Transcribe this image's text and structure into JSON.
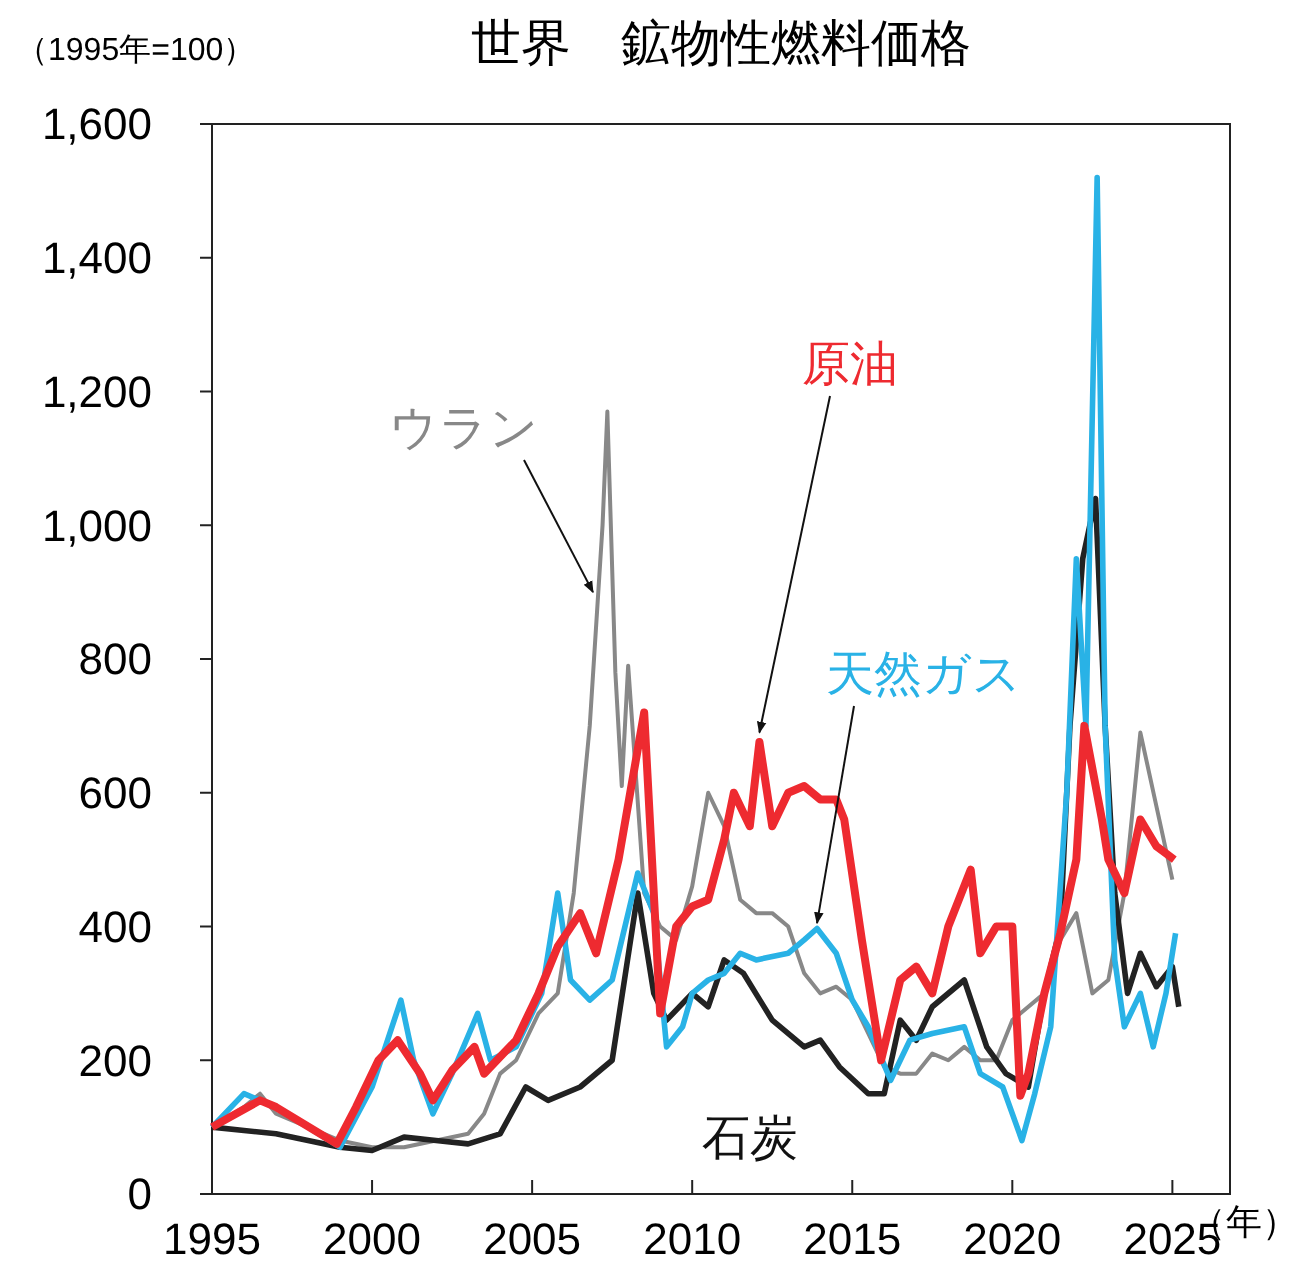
{
  "chart_data": {
    "type": "line",
    "title": "世界　鉱物性燃料価格",
    "ylabel": "（1995年=100）",
    "xlabel": "（年）",
    "xlim": [
      1995,
      2026.8
    ],
    "xticks": [
      1995,
      2000,
      2005,
      2010,
      2015,
      2020,
      2025
    ],
    "ylim": [
      0,
      1600
    ],
    "yticks": [
      0,
      {
        "value": 200,
        "label": "200"
      },
      {
        "value": 400,
        "label": "400"
      },
      {
        "value": 600,
        "label": "600"
      },
      {
        "value": 800,
        "label": "800"
      },
      {
        "value": 1000,
        "label": "1,000"
      },
      {
        "value": 1200,
        "label": "1,200"
      },
      {
        "value": 1400,
        "label": "1,400"
      },
      {
        "value": 1600,
        "label": "1,600"
      }
    ],
    "grid": false,
    "marker": "none",
    "line_style": "solid",
    "series": [
      {
        "name": "ウラン",
        "color": "#888888",
        "x": [
          1995,
          1996,
          1996.5,
          1997,
          1998,
          1999,
          2000,
          2001,
          2002,
          2003,
          2003.5,
          2004,
          2004.5,
          2005.2,
          2005.8,
          2006.3,
          2006.8,
          2007.2,
          2007.35,
          2007.6,
          2007.8,
          2008,
          2008.5,
          2009,
          2009.5,
          2010,
          2010.5,
          2011,
          2011.5,
          2012,
          2012.5,
          2013,
          2013.5,
          2014,
          2014.5,
          2015,
          2015.5,
          2016,
          2016.5,
          2017,
          2017.5,
          2018,
          2018.5,
          2019,
          2019.5,
          2020,
          2021,
          2021.5,
          2022,
          2022.5,
          2023,
          2023.5,
          2024,
          2024.5,
          2025
        ],
        "values": [
          100,
          130,
          150,
          120,
          100,
          80,
          70,
          70,
          80,
          90,
          120,
          180,
          200,
          270,
          300,
          450,
          700,
          1000,
          1170,
          780,
          610,
          790,
          450,
          400,
          380,
          460,
          600,
          550,
          440,
          420,
          420,
          400,
          330,
          300,
          310,
          290,
          240,
          190,
          180,
          180,
          210,
          200,
          220,
          200,
          200,
          260,
          300,
          380,
          420,
          300,
          320,
          450,
          690,
          580,
          470
        ]
      },
      {
        "name": "原油",
        "color": "#ee2a30",
        "x": [
          1995,
          1996.5,
          1997,
          1998.9,
          1999.5,
          2000.2,
          2000.8,
          2001.5,
          2001.9,
          2002.5,
          2003.2,
          2003.5,
          2004.5,
          2005.2,
          2005.8,
          2006.5,
          2007,
          2007.7,
          2008.5,
          2009,
          2009.5,
          2010,
          2010.5,
          2011,
          2011.3,
          2011.8,
          2012.1,
          2012.5,
          2013,
          2013.5,
          2014,
          2014.5,
          2014.75,
          2015.3,
          2015.9,
          2016.5,
          2017,
          2017.5,
          2018,
          2018.7,
          2019,
          2019.5,
          2020,
          2020.25,
          2020.5,
          2021,
          2021.5,
          2022,
          2022.25,
          2022.8,
          2023,
          2023.5,
          2024,
          2024.5,
          2025.06
        ],
        "values": [
          100,
          140,
          130,
          75,
          130,
          200,
          230,
          180,
          140,
          185,
          220,
          180,
          230,
          300,
          370,
          420,
          360,
          500,
          720,
          270,
          400,
          430,
          440,
          530,
          600,
          550,
          676,
          550,
          600,
          610,
          590,
          590,
          560,
          380,
          200,
          320,
          340,
          300,
          400,
          485,
          360,
          400,
          400,
          147,
          180,
          300,
          390,
          500,
          700,
          560,
          500,
          450,
          560,
          520,
          500
        ]
      },
      {
        "name": "天然ガス",
        "color": "#29b2e6",
        "x": [
          1995,
          1996,
          1997,
          1998,
          1999,
          2000,
          2000.9,
          2001.3,
          2001.9,
          2002.5,
          2003.3,
          2003.7,
          2004.5,
          2005.3,
          2005.8,
          2006.2,
          2006.8,
          2007.5,
          2008.3,
          2008.8,
          2009.2,
          2009.7,
          2010,
          2010.5,
          2011,
          2011.5,
          2012,
          2013,
          2013.5,
          2013.9,
          2014.5,
          2015,
          2015.5,
          2016.2,
          2016.8,
          2017.5,
          2018.5,
          2019,
          2019.7,
          2020.3,
          2020.7,
          2021.2,
          2021.7,
          2022,
          2022.3,
          2022.65,
          2022.9,
          2023.2,
          2023.5,
          2024,
          2024.4,
          2024.8,
          2025.1
        ],
        "values": [
          100,
          150,
          130,
          100,
          70,
          160,
          290,
          200,
          120,
          180,
          270,
          200,
          220,
          300,
          450,
          320,
          290,
          320,
          480,
          420,
          220,
          250,
          300,
          320,
          330,
          360,
          350,
          360,
          380,
          397,
          360,
          290,
          250,
          170,
          230,
          240,
          250,
          180,
          160,
          80,
          150,
          250,
          600,
          950,
          700,
          1520,
          700,
          350,
          250,
          300,
          220,
          300,
          390
        ]
      },
      {
        "name": "石炭",
        "color": "#222222",
        "x": [
          1995,
          1996,
          1997,
          1998,
          1999,
          2000,
          2001,
          2002,
          2003,
          2004,
          2004.8,
          2005.5,
          2006.5,
          2007.5,
          2008.3,
          2008.8,
          2009.2,
          2010,
          2010.5,
          2011,
          2011.6,
          2012.5,
          2013.5,
          2014,
          2014.6,
          2015.5,
          2016,
          2016.5,
          2017,
          2017.5,
          2018.5,
          2019.2,
          2019.8,
          2020.5,
          2021,
          2021.5,
          2021.8,
          2022.2,
          2022.6,
          2022.9,
          2023.2,
          2023.6,
          2024,
          2024.5,
          2025,
          2025.2
        ],
        "values": [
          100,
          95,
          90,
          80,
          70,
          65,
          85,
          80,
          75,
          90,
          160,
          140,
          160,
          200,
          450,
          300,
          260,
          300,
          280,
          350,
          330,
          260,
          220,
          230,
          190,
          150,
          150,
          260,
          230,
          280,
          320,
          220,
          180,
          160,
          300,
          400,
          700,
          950,
          1040,
          700,
          450,
          300,
          360,
          310,
          340,
          280
        ]
      }
    ]
  }
}
